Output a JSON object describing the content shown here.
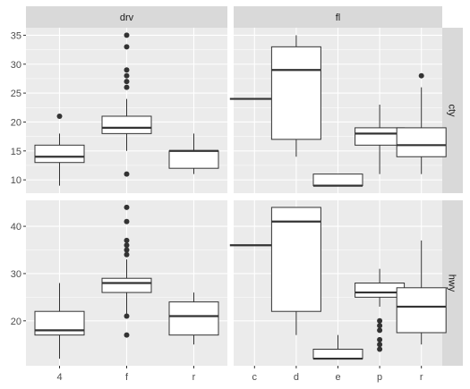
{
  "chart_data": {
    "type": "boxplot",
    "facet_cols": [
      "drv",
      "fl"
    ],
    "facet_rows": [
      "cty",
      "hwy"
    ],
    "colors": {
      "panel": "#ebebeb",
      "grid_major": "#ffffff",
      "strip": "#d9d9d9",
      "box_fill": "#ffffff",
      "box_line": "#333333",
      "text": "#4d4d4d"
    },
    "rows": [
      {
        "name": "cty",
        "ylim": [
          7.7,
          36.3
        ],
        "yticks": [
          10,
          15,
          20,
          25,
          30,
          35
        ],
        "panels": [
          {
            "column": "drv",
            "categories": [
              "4",
              "f",
              "r"
            ],
            "boxes": [
              {
                "q1": 13,
                "median": 14,
                "q3": 16,
                "lower": 9,
                "upper": 18,
                "outliers": [
                  21
                ]
              },
              {
                "q1": 18,
                "median": 19,
                "q3": 21,
                "lower": 15,
                "upper": 24,
                "outliers": [
                  35,
                  33,
                  29,
                  28,
                  27,
                  26,
                  11
                ]
              },
              {
                "q1": 12,
                "median": 15,
                "q3": 15,
                "lower": 11,
                "upper": 18,
                "outliers": []
              }
            ]
          },
          {
            "column": "fl",
            "categories": [
              "c",
              "d",
              "e",
              "p",
              "r"
            ],
            "boxes": [
              {
                "q1": 24,
                "median": 24,
                "q3": 24,
                "lower": 24,
                "upper": 24,
                "outliers": []
              },
              {
                "q1": 17,
                "median": 29,
                "q3": 33,
                "lower": 14,
                "upper": 35,
                "outliers": []
              },
              {
                "q1": 9,
                "median": 9,
                "q3": 11,
                "lower": 9,
                "upper": 11,
                "outliers": []
              },
              {
                "q1": 16,
                "median": 18,
                "q3": 19,
                "lower": 11,
                "upper": 23,
                "outliers": []
              },
              {
                "q1": 14,
                "median": 16,
                "q3": 19,
                "lower": 11,
                "upper": 26,
                "outliers": [
                  28
                ]
              }
            ]
          }
        ]
      },
      {
        "name": "hwy",
        "ylim": [
          10.5,
          45.5
        ],
        "yticks": [
          20,
          30,
          40
        ],
        "panels": [
          {
            "column": "drv",
            "categories": [
              "4",
              "f",
              "r"
            ],
            "boxes": [
              {
                "q1": 17,
                "median": 18,
                "q3": 22,
                "lower": 12,
                "upper": 28,
                "outliers": []
              },
              {
                "q1": 26,
                "median": 28,
                "q3": 29,
                "lower": 21,
                "upper": 33,
                "outliers": [
                  44,
                  41,
                  37,
                  36,
                  35,
                  34,
                  21,
                  17
                ]
              },
              {
                "q1": 17,
                "median": 21,
                "q3": 24,
                "lower": 15,
                "upper": 26,
                "outliers": []
              }
            ]
          },
          {
            "column": "fl",
            "categories": [
              "c",
              "d",
              "e",
              "p",
              "r"
            ],
            "boxes": [
              {
                "q1": 36,
                "median": 36,
                "q3": 36,
                "lower": 36,
                "upper": 36,
                "outliers": []
              },
              {
                "q1": 22,
                "median": 41,
                "q3": 44,
                "lower": 17,
                "upper": 44,
                "outliers": []
              },
              {
                "q1": 12,
                "median": 12,
                "q3": 14,
                "lower": 12,
                "upper": 17,
                "outliers": []
              },
              {
                "q1": 25,
                "median": 26,
                "q3": 28,
                "lower": 23,
                "upper": 31,
                "outliers": [
                  20,
                  19,
                  18,
                  16,
                  15,
                  14
                ]
              },
              {
                "q1": 17.5,
                "median": 23,
                "q3": 27,
                "lower": 15,
                "upper": 37,
                "outliers": []
              }
            ]
          }
        ]
      }
    ]
  }
}
